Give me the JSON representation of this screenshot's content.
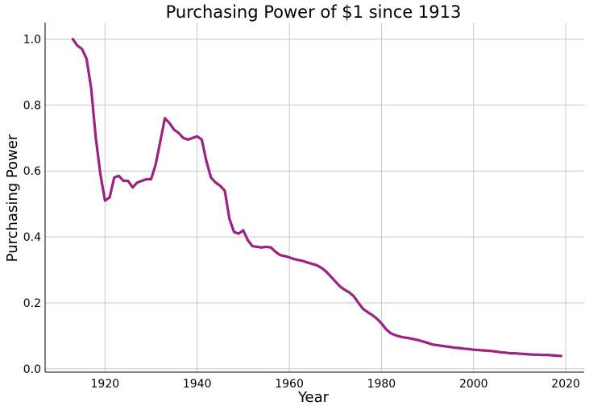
{
  "chart_data": {
    "type": "line",
    "title": "Purchasing Power of $1 since 1913",
    "xlabel": "Year",
    "ylabel": "Purchasing Power",
    "xlim": [
      1907,
      2024
    ],
    "ylim": [
      -0.01,
      1.05
    ],
    "xticks": [
      1920,
      1940,
      1960,
      1980,
      2000,
      2020
    ],
    "yticks": [
      0.0,
      0.2,
      0.4,
      0.6,
      0.8,
      1.0
    ],
    "xtick_labels": [
      "1920",
      "1940",
      "1960",
      "1980",
      "2000",
      "2020"
    ],
    "ytick_labels": [
      "0.0",
      "0.2",
      "0.4",
      "0.6",
      "0.8",
      "1.0"
    ],
    "grid": true,
    "line_color": "#9b2284",
    "series": [
      {
        "x": [
          1913,
          1914,
          1915,
          1916,
          1917,
          1918,
          1919,
          1920,
          1921,
          1922,
          1923,
          1924,
          1925,
          1926,
          1927,
          1928,
          1929,
          1930,
          1931,
          1932,
          1933,
          1934,
          1935,
          1936,
          1937,
          1938,
          1939,
          1940,
          1941,
          1942,
          1943,
          1944,
          1945,
          1946,
          1947,
          1948,
          1949,
          1950,
          1951,
          1952,
          1953,
          1954,
          1955,
          1956,
          1957,
          1958,
          1959,
          1960,
          1961,
          1962,
          1963,
          1964,
          1965,
          1966,
          1967,
          1968,
          1969,
          1970,
          1971,
          1972,
          1973,
          1974,
          1975,
          1976,
          1977,
          1978,
          1979,
          1980,
          1981,
          1982,
          1983,
          1984,
          1985,
          1986,
          1987,
          1988,
          1989,
          1990,
          1991,
          1992,
          1993,
          1994,
          1995,
          1996,
          1997,
          1998,
          1999,
          2000,
          2001,
          2002,
          2003,
          2004,
          2005,
          2006,
          2007,
          2008,
          2009,
          2010,
          2011,
          2012,
          2013,
          2014,
          2015,
          2016,
          2017,
          2018,
          2019
        ],
        "values": [
          1.0,
          0.98,
          0.97,
          0.94,
          0.85,
          0.7,
          0.59,
          0.51,
          0.52,
          0.58,
          0.585,
          0.57,
          0.57,
          0.55,
          0.565,
          0.57,
          0.575,
          0.575,
          0.62,
          0.69,
          0.76,
          0.745,
          0.725,
          0.715,
          0.7,
          0.695,
          0.7,
          0.705,
          0.695,
          0.63,
          0.58,
          0.565,
          0.555,
          0.54,
          0.455,
          0.415,
          0.41,
          0.42,
          0.39,
          0.372,
          0.37,
          0.368,
          0.37,
          0.368,
          0.355,
          0.345,
          0.342,
          0.338,
          0.333,
          0.33,
          0.327,
          0.322,
          0.318,
          0.314,
          0.306,
          0.295,
          0.28,
          0.265,
          0.25,
          0.24,
          0.232,
          0.22,
          0.2,
          0.182,
          0.172,
          0.163,
          0.152,
          0.138,
          0.12,
          0.108,
          0.102,
          0.098,
          0.095,
          0.093,
          0.09,
          0.087,
          0.083,
          0.079,
          0.074,
          0.072,
          0.07,
          0.068,
          0.066,
          0.064,
          0.063,
          0.061,
          0.06,
          0.058,
          0.057,
          0.056,
          0.055,
          0.054,
          0.052,
          0.05,
          0.049,
          0.047,
          0.047,
          0.046,
          0.045,
          0.044,
          0.043,
          0.043,
          0.042,
          0.042,
          0.041,
          0.04,
          0.039
        ]
      }
    ]
  }
}
